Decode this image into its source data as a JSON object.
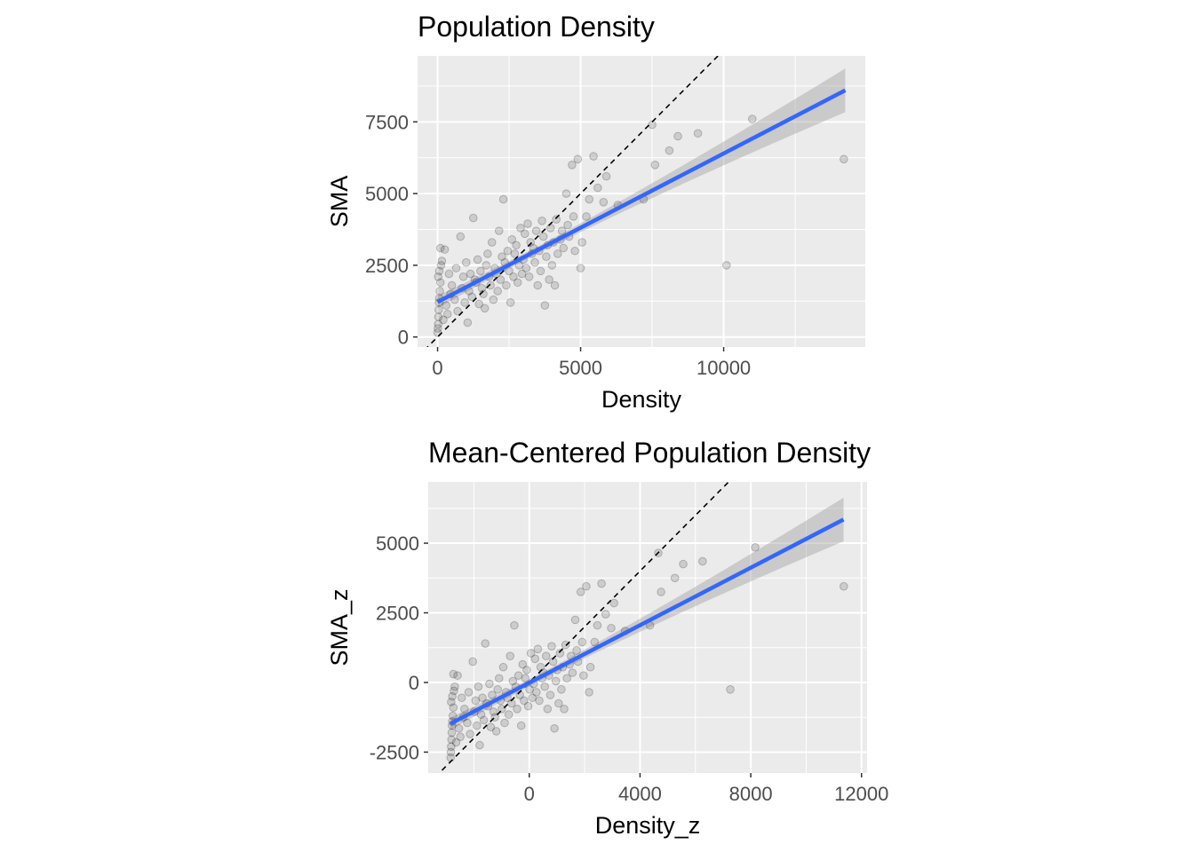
{
  "chart_data": [
    {
      "type": "scatter",
      "title": "Population Density",
      "xlabel": "Density",
      "ylabel": "SMA",
      "xlim": [
        -700,
        14950
      ],
      "ylim": [
        -350,
        9800
      ],
      "xticks": [
        0,
        5000,
        10000
      ],
      "yticks": [
        0,
        2500,
        5000,
        7500
      ],
      "grid": true,
      "reference_line": {
        "type": "identity",
        "slope": 1,
        "intercept": 0,
        "style": "dashed",
        "color": "#000000"
      },
      "fit_line": {
        "type": "linear",
        "color": "#3366FF",
        "x": [
          0,
          14250
        ],
        "y": [
          1220,
          8600
        ],
        "band_color": "#999999"
      },
      "points": [
        [
          0,
          150
        ],
        [
          10,
          300
        ],
        [
          20,
          450
        ],
        [
          30,
          700
        ],
        [
          40,
          950
        ],
        [
          50,
          1200
        ],
        [
          60,
          1350
        ],
        [
          80,
          1600
        ],
        [
          100,
          1900
        ],
        [
          20,
          2100
        ],
        [
          60,
          2300
        ],
        [
          120,
          2500
        ],
        [
          150,
          2650
        ],
        [
          100,
          3100
        ],
        [
          250,
          3050
        ],
        [
          300,
          1100
        ],
        [
          350,
          800
        ],
        [
          200,
          600
        ],
        [
          400,
          2200
        ],
        [
          450,
          1500
        ],
        [
          500,
          1800
        ],
        [
          600,
          1300
        ],
        [
          650,
          2400
        ],
        [
          700,
          900
        ],
        [
          800,
          3500
        ],
        [
          850,
          1700
        ],
        [
          900,
          2100
        ],
        [
          950,
          1200
        ],
        [
          1000,
          2600
        ],
        [
          1050,
          500
        ],
        [
          1100,
          1600
        ],
        [
          1150,
          2200
        ],
        [
          1200,
          1400
        ],
        [
          1250,
          4150
        ],
        [
          1300,
          2000
        ],
        [
          1350,
          1900
        ],
        [
          1400,
          2700
        ],
        [
          1450,
          1150
        ],
        [
          1500,
          2300
        ],
        [
          1550,
          1700
        ],
        [
          1600,
          1500
        ],
        [
          1650,
          1000
        ],
        [
          1700,
          2500
        ],
        [
          1750,
          2900
        ],
        [
          1800,
          2100
        ],
        [
          1850,
          1800
        ],
        [
          1900,
          3300
        ],
        [
          1950,
          1300
        ],
        [
          2000,
          2400
        ],
        [
          2050,
          2200
        ],
        [
          2100,
          1600
        ],
        [
          2150,
          3700
        ],
        [
          2200,
          2000
        ],
        [
          2250,
          2800
        ],
        [
          2300,
          4800
        ],
        [
          2350,
          2600
        ],
        [
          2400,
          1800
        ],
        [
          2450,
          3000
        ],
        [
          2500,
          2300
        ],
        [
          2550,
          1200
        ],
        [
          2600,
          3400
        ],
        [
          2650,
          2100
        ],
        [
          2700,
          2900
        ],
        [
          2750,
          3200
        ],
        [
          2800,
          1900
        ],
        [
          2850,
          2500
        ],
        [
          2900,
          3800
        ],
        [
          2950,
          2200
        ],
        [
          3000,
          2700
        ],
        [
          3050,
          3600
        ],
        [
          3100,
          2400
        ],
        [
          3150,
          3950
        ],
        [
          3200,
          2100
        ],
        [
          3250,
          3300
        ],
        [
          3300,
          2900
        ],
        [
          3350,
          3100
        ],
        [
          3400,
          2600
        ],
        [
          3450,
          3700
        ],
        [
          3500,
          1800
        ],
        [
          3550,
          3000
        ],
        [
          3600,
          2300
        ],
        [
          3650,
          4050
        ],
        [
          3700,
          3500
        ],
        [
          3750,
          1100
        ],
        [
          3800,
          2800
        ],
        [
          3850,
          3200
        ],
        [
          3900,
          2000
        ],
        [
          3950,
          3800
        ],
        [
          4000,
          2500
        ],
        [
          4050,
          3300
        ],
        [
          4100,
          1800
        ],
        [
          4150,
          4100
        ],
        [
          4200,
          2900
        ],
        [
          4300,
          3400
        ],
        [
          4350,
          3700
        ],
        [
          4400,
          3100
        ],
        [
          4500,
          5000
        ],
        [
          4550,
          3900
        ],
        [
          4600,
          3500
        ],
        [
          4700,
          6000
        ],
        [
          4750,
          4200
        ],
        [
          4800,
          3000
        ],
        [
          4900,
          6200
        ],
        [
          5000,
          2400
        ],
        [
          5050,
          3300
        ],
        [
          5200,
          4200
        ],
        [
          5300,
          4800
        ],
        [
          5450,
          6300
        ],
        [
          5600,
          5200
        ],
        [
          5800,
          4700
        ],
        [
          5900,
          5600
        ],
        [
          6300,
          4600
        ],
        [
          7200,
          4800
        ],
        [
          7500,
          7400
        ],
        [
          7600,
          6000
        ],
        [
          8100,
          6500
        ],
        [
          8400,
          7000
        ],
        [
          9100,
          7100
        ],
        [
          10100,
          2500
        ],
        [
          11000,
          7600
        ],
        [
          14200,
          6200
        ]
      ]
    },
    {
      "type": "scatter",
      "title": "Mean-Centered Population Density",
      "xlabel": "Density_z",
      "ylabel": "SMA_z",
      "xlim": [
        -3650,
        12200
      ],
      "ylim": [
        -3250,
        7200
      ],
      "xticks": [
        0,
        4000,
        8000,
        12000
      ],
      "yticks": [
        -2500,
        0,
        2500,
        5000
      ],
      "grid": true,
      "reference_line": {
        "type": "identity",
        "slope": 1,
        "intercept": 0,
        "style": "dashed",
        "color": "#000000"
      },
      "fit_line": {
        "type": "linear",
        "color": "#3366FF",
        "x": [
          -2850,
          11350
        ],
        "y": [
          -1480,
          5850
        ],
        "band_color": "#999999"
      },
      "points": [
        [
          -2840,
          -2700
        ],
        [
          -2830,
          -2500
        ],
        [
          -2820,
          -2300
        ],
        [
          -2810,
          -2050
        ],
        [
          -2800,
          -1800
        ],
        [
          -2790,
          -1550
        ],
        [
          -2780,
          -1400
        ],
        [
          -2760,
          -1200
        ],
        [
          -2740,
          -900
        ],
        [
          -2820,
          -700
        ],
        [
          -2780,
          -500
        ],
        [
          -2720,
          -300
        ],
        [
          -2690,
          -150
        ],
        [
          -2740,
          300
        ],
        [
          -2590,
          250
        ],
        [
          -2540,
          -1650
        ],
        [
          -2490,
          -1950
        ],
        [
          -2640,
          -2150
        ],
        [
          -2440,
          -550
        ],
        [
          -2390,
          -1250
        ],
        [
          -2340,
          -950
        ],
        [
          -2240,
          -1450
        ],
        [
          -2190,
          -350
        ],
        [
          -2140,
          -1850
        ],
        [
          -2040,
          750
        ],
        [
          -1990,
          -1050
        ],
        [
          -1940,
          -650
        ],
        [
          -1890,
          -1550
        ],
        [
          -1840,
          -150
        ],
        [
          -1790,
          -2250
        ],
        [
          -1740,
          -1150
        ],
        [
          -1690,
          -550
        ],
        [
          -1640,
          -1350
        ],
        [
          -1590,
          1400
        ],
        [
          -1540,
          -750
        ],
        [
          -1490,
          -850
        ],
        [
          -1440,
          -50
        ],
        [
          -1390,
          -1600
        ],
        [
          -1340,
          -450
        ],
        [
          -1290,
          -1050
        ],
        [
          -1240,
          -1250
        ],
        [
          -1190,
          -1750
        ],
        [
          -1140,
          -250
        ],
        [
          -1090,
          150
        ],
        [
          -1040,
          -650
        ],
        [
          -990,
          -950
        ],
        [
          -940,
          550
        ],
        [
          -890,
          -1450
        ],
        [
          -840,
          -350
        ],
        [
          -790,
          -550
        ],
        [
          -740,
          -1150
        ],
        [
          -690,
          950
        ],
        [
          -640,
          -750
        ],
        [
          -590,
          50
        ],
        [
          -540,
          2050
        ],
        [
          -490,
          -150
        ],
        [
          -440,
          -950
        ],
        [
          -390,
          250
        ],
        [
          -340,
          -450
        ],
        [
          -290,
          -1550
        ],
        [
          -240,
          650
        ],
        [
          -190,
          -650
        ],
        [
          -140,
          150
        ],
        [
          -90,
          450
        ],
        [
          -40,
          -850
        ],
        [
          10,
          -250
        ],
        [
          60,
          1050
        ],
        [
          110,
          -550
        ],
        [
          160,
          -50
        ],
        [
          210,
          850
        ],
        [
          260,
          -350
        ],
        [
          310,
          1200
        ],
        [
          360,
          -650
        ],
        [
          410,
          550
        ],
        [
          460,
          150
        ],
        [
          510,
          350
        ],
        [
          560,
          -150
        ],
        [
          610,
          950
        ],
        [
          660,
          -950
        ],
        [
          710,
          250
        ],
        [
          760,
          -450
        ],
        [
          810,
          1300
        ],
        [
          860,
          750
        ],
        [
          910,
          -1650
        ],
        [
          960,
          50
        ],
        [
          1010,
          450
        ],
        [
          1060,
          -750
        ],
        [
          1110,
          1050
        ],
        [
          1160,
          -250
        ],
        [
          1210,
          550
        ],
        [
          1260,
          -950
        ],
        [
          1310,
          1350
        ],
        [
          1360,
          150
        ],
        [
          1460,
          650
        ],
        [
          1510,
          950
        ],
        [
          1560,
          350
        ],
        [
          1660,
          2250
        ],
        [
          1710,
          1150
        ],
        [
          1760,
          750
        ],
        [
          1860,
          3250
        ],
        [
          1910,
          1450
        ],
        [
          1960,
          250
        ],
        [
          2060,
          3450
        ],
        [
          2160,
          -350
        ],
        [
          2210,
          550
        ],
        [
          2360,
          1450
        ],
        [
          2460,
          2050
        ],
        [
          2610,
          3550
        ],
        [
          2760,
          2450
        ],
        [
          2960,
          1950
        ],
        [
          3060,
          2850
        ],
        [
          3460,
          1850
        ],
        [
          4360,
          2050
        ],
        [
          4660,
          4650
        ],
        [
          4760,
          3250
        ],
        [
          5260,
          3750
        ],
        [
          5560,
          4250
        ],
        [
          6260,
          4350
        ],
        [
          7260,
          -250
        ],
        [
          8160,
          4850
        ],
        [
          11360,
          3450
        ]
      ]
    }
  ]
}
